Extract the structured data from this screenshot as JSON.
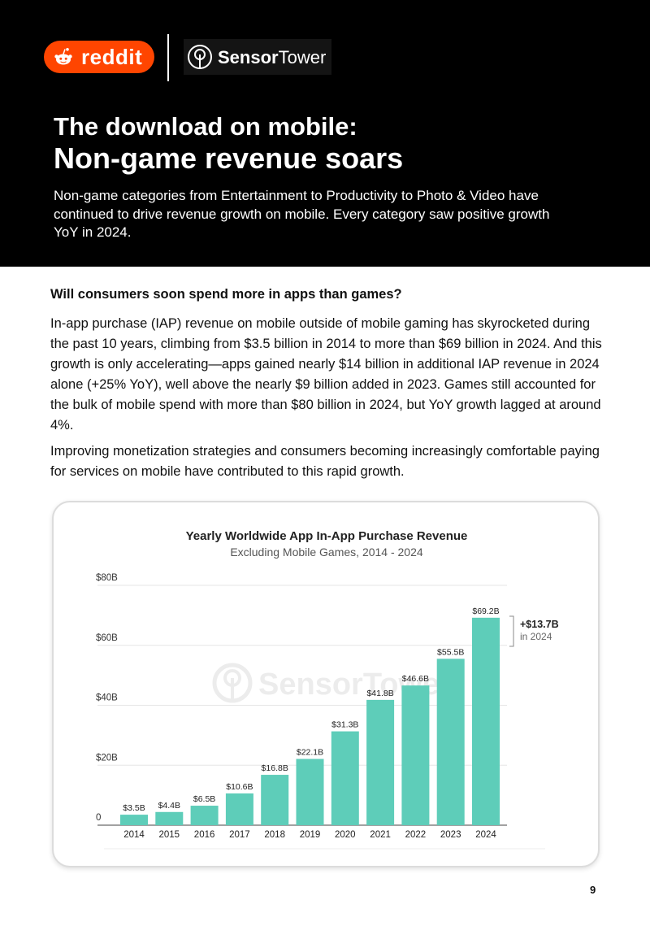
{
  "logos": {
    "reddit_text": "reddit",
    "sensortower_bold": "Sensor",
    "sensortower_light": "Tower"
  },
  "header": {
    "title_line1": "The download on mobile:",
    "title_line2": "Non-game revenue soars",
    "description": "Non-game categories from Entertainment to Productivity to Photo & Video have continued to drive revenue growth on mobile. Every category saw positive growth YoY in 2024."
  },
  "body": {
    "question": "Will consumers soon spend more in apps than games?",
    "paragraph1": "In-app purchase (IAP) revenue on mobile outside of mobile gaming has skyrocketed during the past 10 years, climbing from $3.5 billion in 2014 to more than $69 billion in 2024. And this growth is only accelerating—apps gained nearly $14 billion in additional IAP revenue in 2024 alone (+25% YoY), well above the nearly $9 billion added in 2023. Games still accounted for the bulk of mobile spend with more than $80 billion in 2024, but YoY growth lagged at around 4%.",
    "paragraph2": "Improving monetization strategies and consumers becoming increasingly comfortable paying for services on mobile have contributed to this rapid growth."
  },
  "chart_data": {
    "type": "bar",
    "title": "Yearly Worldwide App In-App Purchase Revenue",
    "subtitle": "Excluding Mobile Games, 2014 - 2024",
    "categories": [
      "2014",
      "2015",
      "2016",
      "2017",
      "2018",
      "2019",
      "2020",
      "2021",
      "2022",
      "2023",
      "2024"
    ],
    "values": [
      3.5,
      4.4,
      6.5,
      10.6,
      16.8,
      22.1,
      31.3,
      41.8,
      46.6,
      55.5,
      69.2
    ],
    "value_labels": [
      "$3.5B",
      "$4.4B",
      "$6.5B",
      "$10.6B",
      "$16.8B",
      "$22.1B",
      "$31.3B",
      "$41.8B",
      "$46.6B",
      "$55.5B",
      "$69.2B"
    ],
    "ylim": [
      0,
      80
    ],
    "y_ticks": [
      0,
      20,
      40,
      60,
      80
    ],
    "y_tick_labels": [
      "0",
      "$20B",
      "$40B",
      "$60B",
      "$80B"
    ],
    "grid": true,
    "bar_color": "#5ecdb9",
    "annotation": {
      "value": "+$13.7B",
      "label": "in 2024"
    },
    "watermark": "SensorTower"
  },
  "page_number": "9"
}
